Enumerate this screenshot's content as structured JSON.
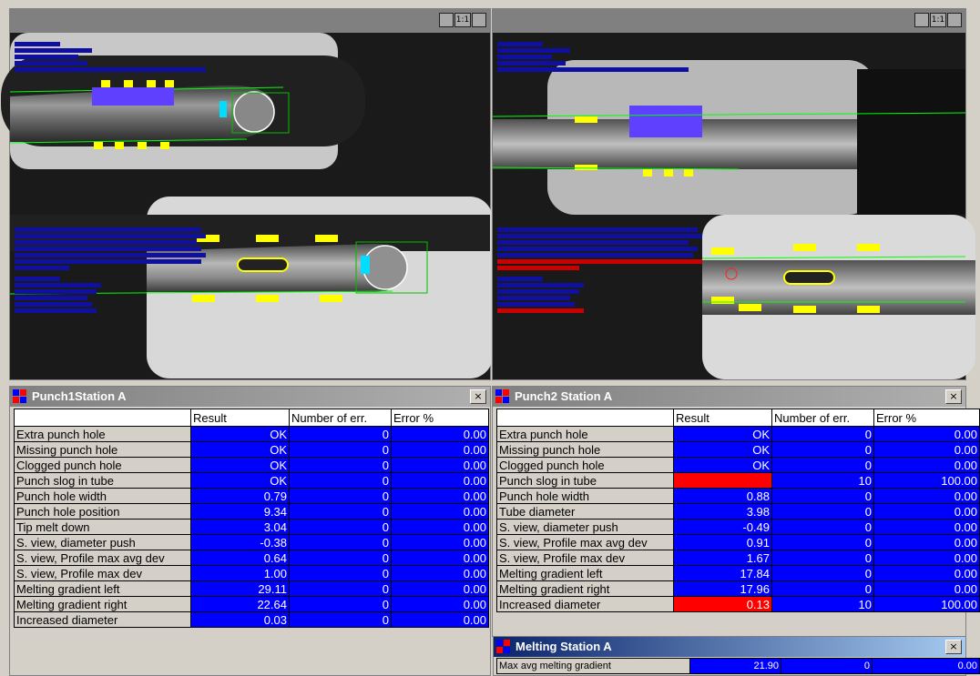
{
  "colors": {
    "ok": "#0000ff",
    "error": "#ff0000",
    "title_active": "#0a246a",
    "title_inactive": "#808080"
  },
  "icons": {
    "viewport_buttons": [
      "fit-window-icon",
      "one-to-one-icon",
      "zoom-window-icon"
    ],
    "panel_icon": "station-icon",
    "panel_close": "close-icon"
  },
  "viewport_buttons": {
    "fit": "",
    "one_to_one": "1:1",
    "zoom": ""
  },
  "panel_close_label": "×",
  "columns": {
    "blank": "",
    "result": "Result",
    "errors": "Number of err.",
    "percent": "Error %"
  },
  "punch1": {
    "title": "Punch1Station A",
    "rows": [
      {
        "name": "Extra punch hole",
        "result": "OK",
        "errors": "0",
        "percent": "0.00",
        "status": "ok"
      },
      {
        "name": "Missing punch hole",
        "result": "OK",
        "errors": "0",
        "percent": "0.00",
        "status": "ok"
      },
      {
        "name": "Clogged punch hole",
        "result": "OK",
        "errors": "0",
        "percent": "0.00",
        "status": "ok"
      },
      {
        "name": "Punch slog in tube",
        "result": "OK",
        "errors": "0",
        "percent": "0.00",
        "status": "ok"
      },
      {
        "name": "Punch hole width",
        "result": "0.79",
        "errors": "0",
        "percent": "0.00",
        "status": "ok"
      },
      {
        "name": "Punch hole position",
        "result": "9.34",
        "errors": "0",
        "percent": "0.00",
        "status": "ok"
      },
      {
        "name": "Tip melt down",
        "result": "3.04",
        "errors": "0",
        "percent": "0.00",
        "status": "ok"
      },
      {
        "name": "S. view, diameter push",
        "result": "-0.38",
        "errors": "0",
        "percent": "0.00",
        "status": "ok"
      },
      {
        "name": "S. view, Profile max avg dev",
        "result": "0.64",
        "errors": "0",
        "percent": "0.00",
        "status": "ok"
      },
      {
        "name": "S. view, Profile max dev",
        "result": "1.00",
        "errors": "0",
        "percent": "0.00",
        "status": "ok"
      },
      {
        "name": "Melting gradient left",
        "result": "29.11",
        "errors": "0",
        "percent": "0.00",
        "status": "ok"
      },
      {
        "name": "Melting gradient right",
        "result": "22.64",
        "errors": "0",
        "percent": "0.00",
        "status": "ok"
      },
      {
        "name": "Increased diameter",
        "result": "0.03",
        "errors": "0",
        "percent": "0.00",
        "status": "ok"
      }
    ]
  },
  "punch2": {
    "title": "Punch2 Station A",
    "rows": [
      {
        "name": "Extra punch hole",
        "result": "OK",
        "errors": "0",
        "percent": "0.00",
        "status": "ok"
      },
      {
        "name": "Missing punch hole",
        "result": "OK",
        "errors": "0",
        "percent": "0.00",
        "status": "ok"
      },
      {
        "name": "Clogged punch hole",
        "result": "OK",
        "errors": "0",
        "percent": "0.00",
        "status": "ok"
      },
      {
        "name": "Punch slog in tube",
        "result": "",
        "errors": "10",
        "percent": "100.00",
        "status": "error"
      },
      {
        "name": "Punch hole width",
        "result": "0.88",
        "errors": "0",
        "percent": "0.00",
        "status": "ok"
      },
      {
        "name": "Tube diameter",
        "result": "3.98",
        "errors": "0",
        "percent": "0.00",
        "status": "ok"
      },
      {
        "name": "S. view, diameter push",
        "result": "-0.49",
        "errors": "0",
        "percent": "0.00",
        "status": "ok"
      },
      {
        "name": "S. view, Profile max avg dev",
        "result": "0.91",
        "errors": "0",
        "percent": "0.00",
        "status": "ok"
      },
      {
        "name": "S. view, Profile max dev",
        "result": "1.67",
        "errors": "0",
        "percent": "0.00",
        "status": "ok"
      },
      {
        "name": "Melting gradient left",
        "result": "17.84",
        "errors": "0",
        "percent": "0.00",
        "status": "ok"
      },
      {
        "name": "Melting gradient right",
        "result": "17.96",
        "errors": "0",
        "percent": "0.00",
        "status": "ok"
      },
      {
        "name": "Increased diameter",
        "result": "0.13",
        "errors": "10",
        "percent": "100.00",
        "status": "error"
      }
    ]
  },
  "melting": {
    "title": "Melting Station A",
    "rows": [
      {
        "name": "Max avg melting gradient",
        "result": "21.90",
        "errors": "0",
        "percent": "0.00",
        "status": "ok"
      }
    ]
  }
}
